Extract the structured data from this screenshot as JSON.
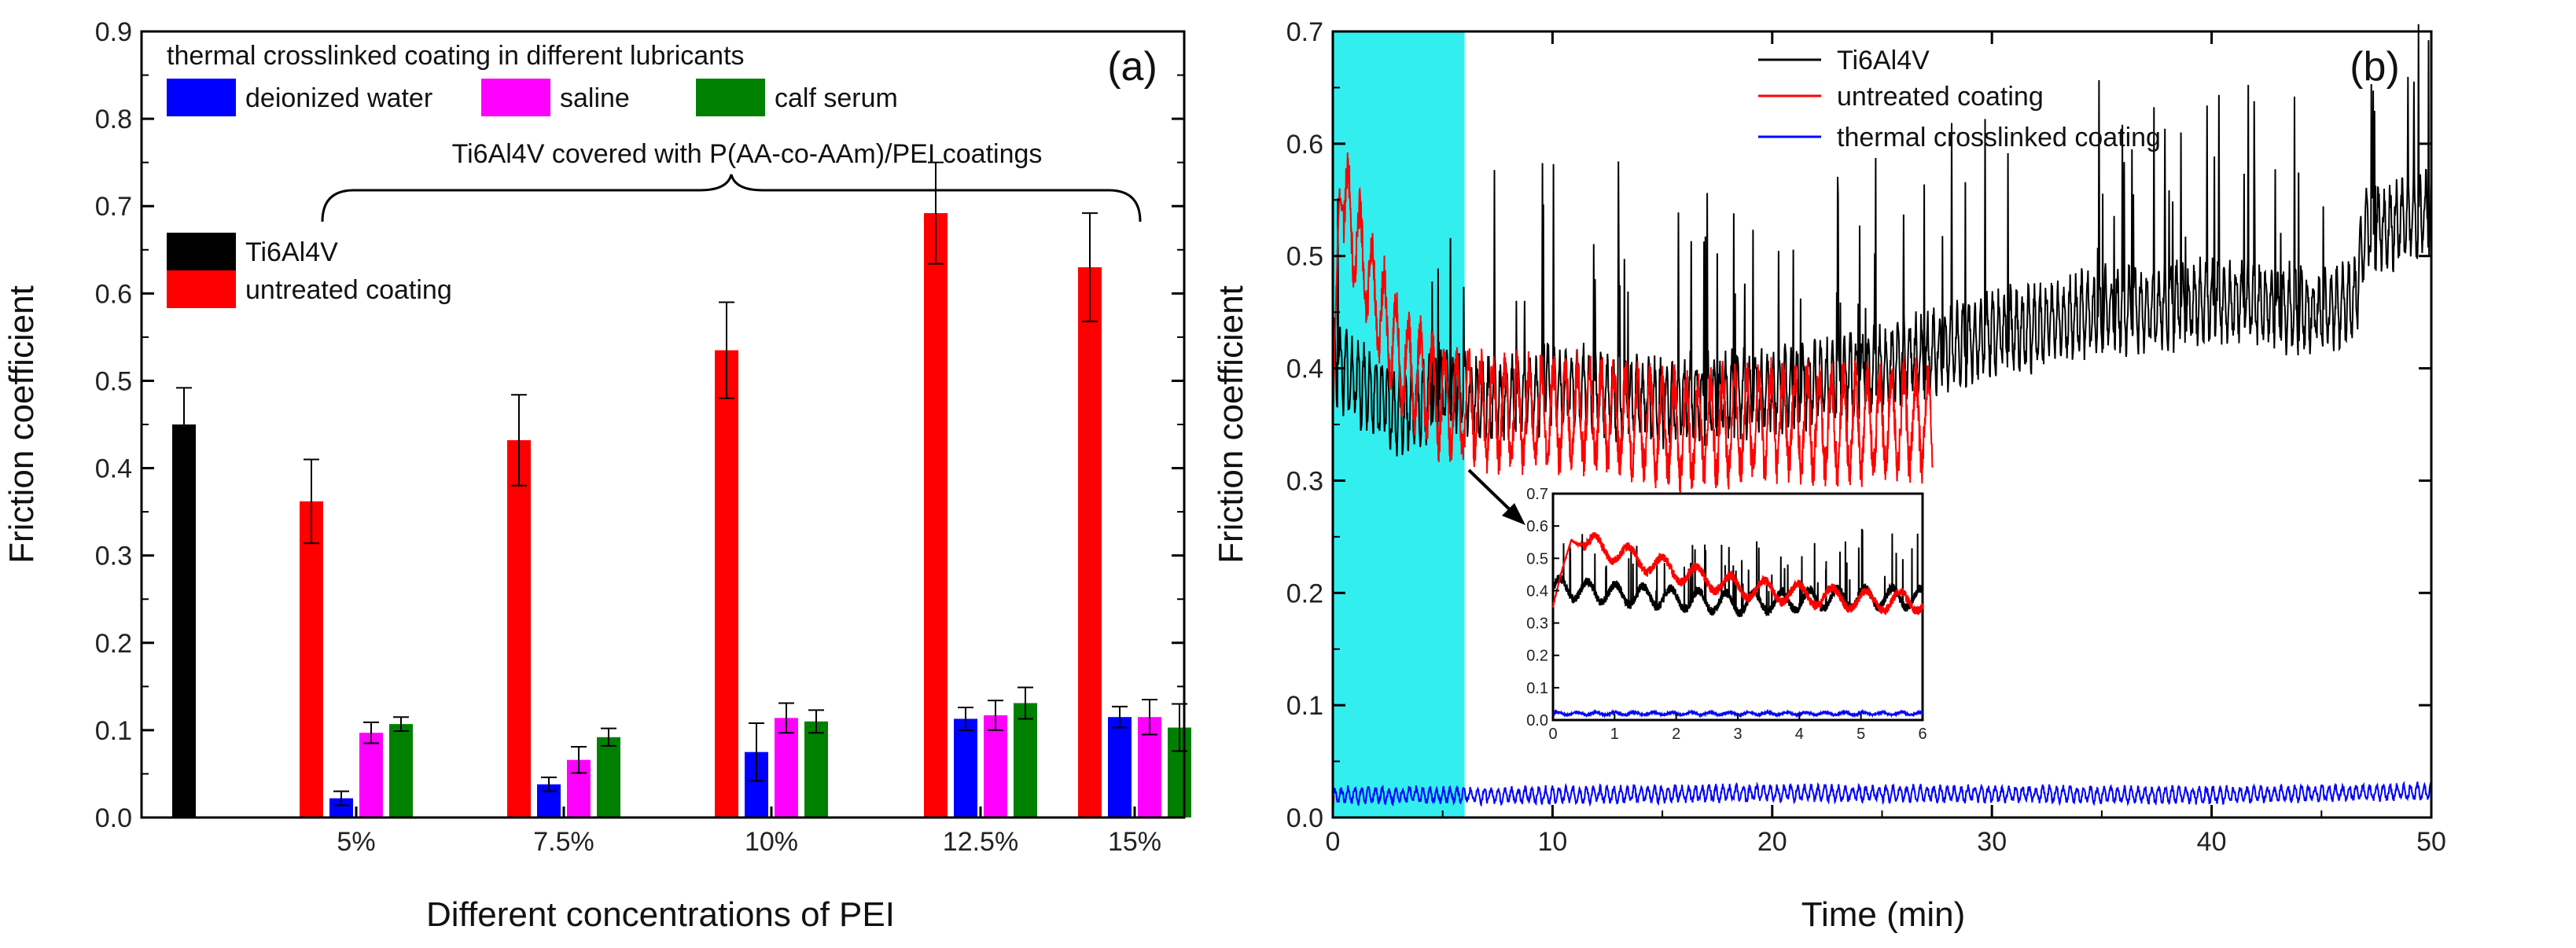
{
  "chart_data": [
    {
      "panel_label": "(a)",
      "type": "bar",
      "xlabel": "Different concentrations of PEI",
      "ylabel": "Friction coefficient",
      "ylim": [
        0,
        0.9
      ],
      "yticks": [
        "0.0",
        "0.1",
        "0.2",
        "0.3",
        "0.4",
        "0.5",
        "0.6",
        "0.7",
        "0.8",
        "0.9"
      ],
      "categories": [
        "5%",
        "7.5%",
        "10%",
        "12.5%",
        "15%"
      ],
      "reference": {
        "name": "Ti6Al4V",
        "value": 0.45,
        "error": 0.042,
        "color": "#000000"
      },
      "series": [
        {
          "name": "untreated coating",
          "color": "#ff0000",
          "values": [
            0.362,
            0.432,
            0.535,
            0.692,
            0.63
          ],
          "errors": [
            0.048,
            0.052,
            0.055,
            0.058,
            0.062
          ]
        },
        {
          "name": "deionized water",
          "color": "#0000ff",
          "values": [
            0.022,
            0.038,
            0.075,
            0.113,
            0.115
          ],
          "errors": [
            0.008,
            0.008,
            0.033,
            0.013,
            0.012
          ]
        },
        {
          "name": "saline",
          "color": "#ff00ff",
          "values": [
            0.097,
            0.066,
            0.114,
            0.117,
            0.115
          ],
          "errors": [
            0.012,
            0.015,
            0.017,
            0.017,
            0.02
          ]
        },
        {
          "name": "calf serum",
          "color": "#008000",
          "values": [
            0.107,
            0.092,
            0.11,
            0.131,
            0.103
          ],
          "errors": [
            0.008,
            0.01,
            0.013,
            0.018,
            0.027
          ]
        }
      ],
      "legend_group_title": "thermal crosslinked coating  in different lubricants",
      "annotation": "Ti6Al4V covered with P(AA-co-AAm)/PEI coatings"
    },
    {
      "panel_label": "(b)",
      "type": "line",
      "xlabel": "Time (min)",
      "ylabel": "Friction coefficient",
      "xlim": [
        0,
        50
      ],
      "ylim": [
        0,
        0.7
      ],
      "xticks": [
        "0",
        "10",
        "20",
        "30",
        "40",
        "50"
      ],
      "yticks": [
        "0.0",
        "0.1",
        "0.2",
        "0.3",
        "0.4",
        "0.5",
        "0.6",
        "0.7"
      ],
      "highlight_span": [
        0,
        6
      ],
      "series": [
        {
          "name": "Ti6Al4V",
          "color": "#000000",
          "x": [
            0,
            1,
            3,
            5,
            8,
            10,
            15,
            20,
            25,
            30,
            35,
            40,
            45,
            46.5,
            47,
            50
          ],
          "y": [
            0.41,
            0.39,
            0.36,
            0.38,
            0.37,
            0.385,
            0.37,
            0.38,
            0.4,
            0.43,
            0.45,
            0.46,
            0.45,
            0.46,
            0.52,
            0.54
          ]
        },
        {
          "name": "untreated  coating",
          "color": "#ff0000",
          "x": [
            0,
            0.3,
            1,
            2,
            3,
            5,
            8,
            12,
            16,
            20,
            24,
            27.3
          ],
          "y": [
            0.35,
            0.56,
            0.52,
            0.46,
            0.41,
            0.37,
            0.36,
            0.36,
            0.345,
            0.355,
            0.35,
            0.355
          ]
        },
        {
          "name": "thermal crosslinked coating",
          "color": "#0000ff",
          "x": [
            0,
            10,
            20,
            30,
            40,
            50
          ],
          "y": [
            0.02,
            0.02,
            0.022,
            0.021,
            0.02,
            0.023
          ]
        }
      ],
      "inset": {
        "xlim": [
          0,
          6
        ],
        "ylim": [
          0,
          0.7
        ],
        "xticks": [
          "0",
          "1",
          "2",
          "3",
          "4",
          "5",
          "6"
        ],
        "yticks": [
          "0.0",
          "0.1",
          "0.2",
          "0.3",
          "0.4",
          "0.5",
          "0.6",
          "0.7"
        ]
      }
    }
  ]
}
